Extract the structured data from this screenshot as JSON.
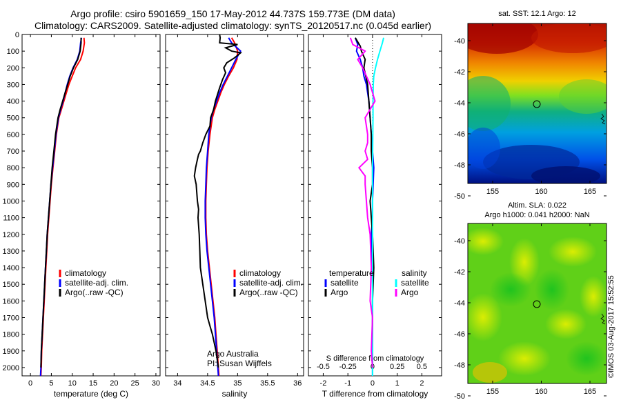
{
  "header": {
    "line1": "Argo profile: csiro 5901659_150 17-May-2012 44.737S 159.773E (DM data)",
    "line2": "Climatology: CARS2009. Satellite-adjusted climatology: synTS_20120517.nc (0.045d earlier)"
  },
  "colors": {
    "climatology": "#ff0000",
    "satellite": "#0000ff",
    "argo": "#000000",
    "sal_satellite": "#00ffff",
    "sal_argo": "#ff00ff"
  },
  "maps": {
    "sst_title": "sat. SST: 12.1  Argo: 12",
    "sla_title1": "Altim. SLA: 0.022",
    "sla_title2": "Argo h1000: 0.041 h2000: NaN",
    "lat_ticks": [
      "-40",
      "-42",
      "-44",
      "-46",
      "-48",
      "-50"
    ],
    "lon_ticks": [
      "155",
      "160",
      "165"
    ]
  },
  "credit": "©IMOS 03-Aug-2017 15:52:55",
  "chart_data": [
    {
      "type": "line",
      "name": "temperature",
      "xlabel": "temperature (deg C)",
      "ylabel": "",
      "xlim": [
        -2,
        31
      ],
      "ylim": [
        2050,
        0
      ],
      "xticks": [
        0,
        5,
        10,
        15,
        20,
        25,
        30
      ],
      "yticks": [
        0,
        100,
        200,
        300,
        400,
        500,
        600,
        700,
        800,
        900,
        1000,
        1100,
        1200,
        1300,
        1400,
        1500,
        1600,
        1700,
        1800,
        1900,
        2000
      ],
      "legend": [
        "climatology",
        "satellite-adj. clim.",
        "Argo(..raw -QC)"
      ],
      "legend_position": "middle-right",
      "series": [
        {
          "name": "climatology",
          "color": "#ff0000",
          "x": [
            12.8,
            12.9,
            12.6,
            12.0,
            10.8,
            10.0,
            9.2,
            8.6,
            8.0,
            7.4,
            6.8,
            6.2,
            5.8,
            5.4,
            5.0,
            4.7,
            4.4,
            4.1,
            3.9,
            3.7,
            3.5,
            3.3,
            3.1,
            2.9,
            2.7,
            2.6,
            2.5
          ],
          "y": [
            20,
            50,
            100,
            150,
            200,
            250,
            300,
            350,
            400,
            450,
            500,
            600,
            700,
            800,
            900,
            1000,
            1100,
            1200,
            1300,
            1400,
            1500,
            1600,
            1700,
            1800,
            1900,
            2000,
            2050
          ]
        },
        {
          "name": "satellite-adj. clim.",
          "color": "#0000ff",
          "x": [
            12.2,
            12.0,
            11.8,
            11.2,
            10.2,
            9.4,
            8.8,
            8.3,
            7.8,
            7.2,
            6.7,
            6.1,
            5.7,
            5.3,
            4.9,
            4.6,
            4.3,
            4.0,
            3.8,
            3.6,
            3.4,
            3.2,
            3.0,
            2.8,
            2.6,
            2.5,
            2.4
          ],
          "y": [
            20,
            50,
            100,
            150,
            200,
            250,
            300,
            350,
            400,
            450,
            500,
            600,
            700,
            800,
            900,
            1000,
            1100,
            1200,
            1300,
            1400,
            1500,
            1600,
            1700,
            1800,
            1900,
            2000,
            2050
          ]
        },
        {
          "name": "Argo(..raw -QC)",
          "color": "#000000",
          "x": [
            12.1,
            12.1,
            11.9,
            11.3,
            10.3,
            9.5,
            8.9,
            8.3,
            7.7,
            7.1,
            6.6,
            6.0,
            5.6,
            5.2,
            4.9,
            4.6,
            4.3,
            4.0,
            3.8,
            3.6,
            3.4,
            3.2,
            3.0,
            2.8,
            2.6,
            2.5
          ],
          "y": [
            20,
            50,
            100,
            150,
            200,
            250,
            300,
            350,
            400,
            450,
            500,
            600,
            700,
            800,
            900,
            1000,
            1100,
            1200,
            1300,
            1400,
            1500,
            1600,
            1700,
            1800,
            1900,
            2000
          ]
        }
      ]
    },
    {
      "type": "line",
      "name": "salinity",
      "xlabel": "salinity",
      "ylabel": "",
      "xlim": [
        33.8,
        36.1
      ],
      "ylim": [
        2050,
        0
      ],
      "xticks": [
        34,
        34.5,
        35,
        35.5,
        36
      ],
      "legend": [
        "climatology",
        "satellite-adj. clim.",
        "Argo(..raw -QC)"
      ],
      "legend_position": "middle-right",
      "annotation": [
        "Argo Australia",
        "PI: Susan Wijffels"
      ],
      "series": [
        {
          "name": "climatology",
          "color": "#ff0000",
          "x": [
            34.9,
            34.95,
            35.0,
            34.99,
            34.93,
            34.85,
            34.78,
            34.72,
            34.67,
            34.62,
            34.58,
            34.54,
            34.51,
            34.49,
            34.48,
            34.47,
            34.47,
            34.48,
            34.5,
            34.53,
            34.56,
            34.59,
            34.62,
            34.64,
            34.66,
            34.68,
            34.69
          ],
          "y": [
            20,
            50,
            100,
            150,
            200,
            250,
            300,
            350,
            400,
            450,
            500,
            600,
            700,
            800,
            900,
            1000,
            1100,
            1200,
            1300,
            1400,
            1500,
            1600,
            1700,
            1800,
            1900,
            2000,
            2050
          ]
        },
        {
          "name": "satellite-adj. clim.",
          "color": "#0000ff",
          "x": [
            34.85,
            34.9,
            35.05,
            34.97,
            34.9,
            34.83,
            34.76,
            34.7,
            34.65,
            34.6,
            34.56,
            34.52,
            34.5,
            34.48,
            34.47,
            34.46,
            34.46,
            34.47,
            34.49,
            34.52,
            34.55,
            34.58,
            34.61,
            34.63,
            34.65,
            34.67,
            34.68
          ],
          "y": [
            20,
            50,
            100,
            150,
            200,
            250,
            300,
            350,
            400,
            450,
            500,
            600,
            700,
            800,
            900,
            1000,
            1100,
            1200,
            1300,
            1400,
            1500,
            1600,
            1700,
            1800,
            1900,
            2000,
            2050
          ]
        },
        {
          "name": "Argo(..raw -QC)",
          "color": "#000000",
          "x": [
            34.7,
            34.71,
            34.7,
            35.0,
            34.8,
            34.9,
            35.05,
            34.95,
            34.82,
            34.77,
            34.8,
            34.75,
            34.7,
            34.63,
            34.6,
            34.55,
            34.54,
            34.47,
            34.42,
            34.38,
            34.35,
            34.33,
            34.3,
            34.28,
            34.31,
            34.32,
            34.33,
            34.35,
            34.34,
            34.36,
            34.37,
            34.38,
            34.42,
            34.46,
            34.5,
            34.54,
            34.58,
            34.61,
            34.64,
            34.66,
            34.68
          ],
          "y": [
            0,
            20,
            50,
            60,
            80,
            100,
            110,
            140,
            170,
            200,
            230,
            270,
            320,
            400,
            450,
            500,
            550,
            600,
            650,
            700,
            720,
            750,
            800,
            850,
            900,
            950,
            1000,
            1050,
            1100,
            1200,
            1300,
            1400,
            1500,
            1600,
            1700,
            1750,
            1800,
            1850,
            1900,
            1950,
            2000
          ]
        }
      ]
    },
    {
      "type": "line",
      "name": "difference",
      "xlabel": "T difference from climatology",
      "xlabel_top": "S difference from climatology",
      "ylabel": "",
      "xlim": [
        -2.6,
        2.8
      ],
      "ylim": [
        2050,
        0
      ],
      "xticks": [
        "-2",
        "-1",
        "0",
        "1",
        "2"
      ],
      "xticks_top": [
        "-0.5",
        "-0.25",
        "0",
        "0.25",
        "0.5"
      ],
      "legend_temp": [
        "temperature",
        "satellite",
        "Argo"
      ],
      "legend_sal": [
        "salinity",
        "satellite",
        "Argo"
      ],
      "legend_position": "middle",
      "series": [
        {
          "name": "satellite",
          "color": "#0000ff",
          "x": [
            -0.7,
            -0.6,
            -0.65,
            -0.5,
            -0.4,
            -0.35,
            -0.25,
            -0.2,
            -0.15,
            -0.1,
            -0.05,
            0.0,
            0.05,
            0.0,
            0.0,
            -0.05,
            0.0,
            0.0,
            0.0,
            0.0,
            0.0
          ],
          "y": [
            20,
            60,
            100,
            150,
            200,
            250,
            300,
            350,
            400,
            500,
            600,
            700,
            800,
            1000,
            1100,
            1200,
            1400,
            1600,
            1800,
            2000,
            2050
          ]
        },
        {
          "name": "Argo",
          "color": "#000000",
          "x": [
            -0.7,
            -0.5,
            -0.45,
            -0.3,
            -0.35,
            -0.2,
            -0.15,
            -0.1,
            -0.05,
            -0.05,
            0.0,
            0.0,
            -0.1,
            -0.05,
            0.0,
            0.05,
            0.0,
            0.0,
            0.0
          ],
          "y": [
            20,
            70,
            100,
            150,
            200,
            300,
            400,
            500,
            600,
            700,
            800,
            900,
            1000,
            1100,
            1200,
            1400,
            1600,
            1800,
            2000
          ]
        },
        {
          "name": "satellite",
          "color": "#00ffff",
          "x": [
            0.45,
            0.4,
            0.3,
            0.2,
            0.12,
            0.05,
            0.03,
            0.02,
            0.02,
            0.01,
            0.0,
            0.0,
            0.0,
            0.0,
            0.0,
            0.0,
            0.0,
            0.0
          ],
          "y": [
            20,
            50,
            100,
            150,
            200,
            250,
            300,
            400,
            500,
            600,
            800,
            1000,
            1200,
            1400,
            1600,
            1800,
            2000,
            2050
          ]
        },
        {
          "name": "Argo",
          "color": "#ff00ff",
          "x": [
            -0.9,
            -0.8,
            -0.3,
            -0.6,
            -0.4,
            -0.1,
            0.1,
            -0.3,
            -0.2,
            -0.2,
            -0.3,
            -0.2,
            -0.55,
            -0.3,
            -0.3,
            -0.25,
            -0.2,
            -0.1,
            -0.05,
            -0.1,
            0.0,
            -0.05,
            0.0
          ],
          "y": [
            20,
            60,
            100,
            150,
            200,
            300,
            400,
            500,
            600,
            650,
            700,
            750,
            800,
            850,
            900,
            1000,
            1100,
            1200,
            1400,
            1600,
            1700,
            1900,
            2000
          ]
        }
      ]
    }
  ]
}
